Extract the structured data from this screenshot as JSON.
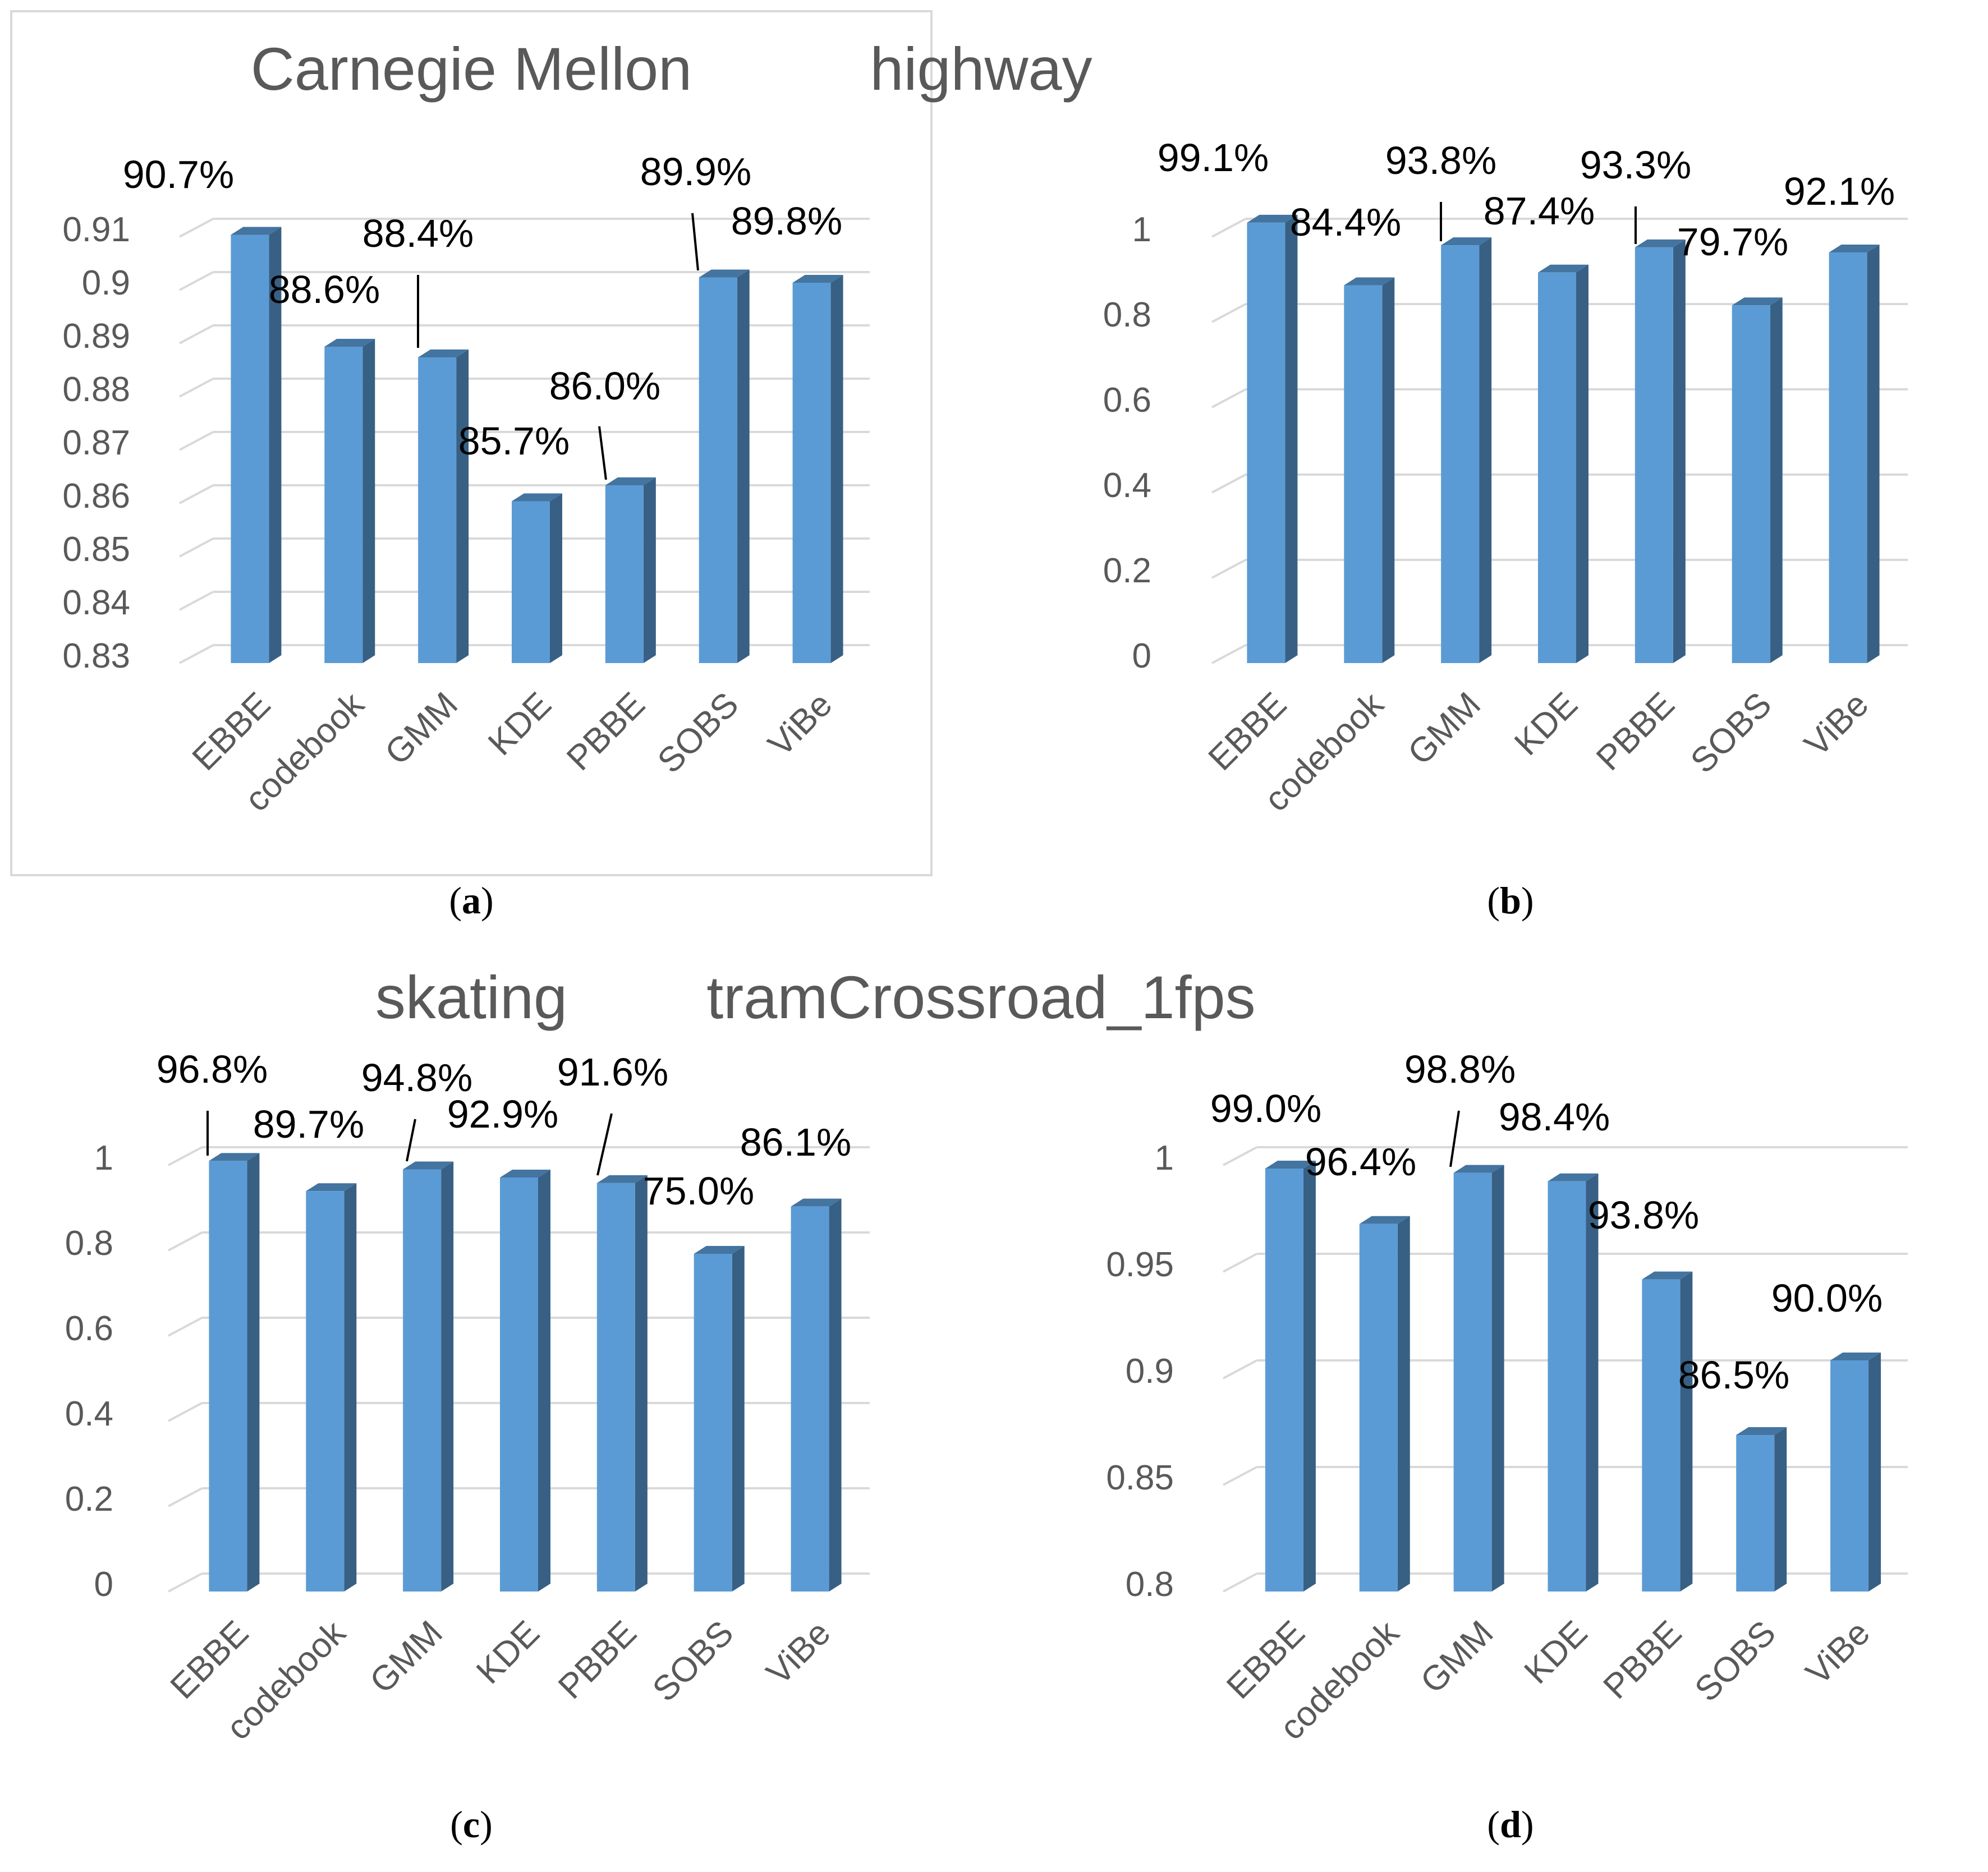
{
  "chart_data": [
    {
      "type": "bar",
      "title": "Carnegie Mellon",
      "caption_letter": "a",
      "categories": [
        "EBBE",
        "codebook",
        "GMM",
        "KDE",
        "PBBE",
        "SOBS",
        "ViBe"
      ],
      "values": [
        0.907,
        0.886,
        0.884,
        0.857,
        0.86,
        0.899,
        0.898
      ],
      "data_labels": [
        "90.7%",
        "88.6%",
        "88.4%",
        "85.7%",
        "86.0%",
        "89.9%",
        "89.8%"
      ],
      "ylim": [
        0.83,
        0.91
      ],
      "yticks": [
        "0.83",
        "0.84",
        "0.85",
        "0.86",
        "0.87",
        "0.88",
        "0.89",
        "0.9",
        "0.91"
      ],
      "grid": true,
      "bar_color": "#5B9BD5"
    },
    {
      "type": "bar",
      "title": "highway",
      "caption_letter": "b",
      "categories": [
        "EBBE",
        "codebook",
        "GMM",
        "KDE",
        "PBBE",
        "SOBS",
        "ViBe"
      ],
      "values": [
        0.991,
        0.844,
        0.938,
        0.874,
        0.933,
        0.797,
        0.921
      ],
      "data_labels": [
        "99.1%",
        "84.4%",
        "93.8%",
        "87.4%",
        "93.3%",
        "79.7%",
        "92.1%"
      ],
      "ylim": [
        0,
        1
      ],
      "yticks": [
        "0",
        "0.2",
        "0.4",
        "0.6",
        "0.8",
        "1"
      ],
      "grid": true,
      "bar_color": "#5B9BD5"
    },
    {
      "type": "bar",
      "title": "skating",
      "caption_letter": "c",
      "categories": [
        "EBBE",
        "codebook",
        "GMM",
        "KDE",
        "PBBE",
        "SOBS",
        "ViBe"
      ],
      "values": [
        0.968,
        0.897,
        0.948,
        0.929,
        0.916,
        0.75,
        0.861
      ],
      "data_labels": [
        "96.8%",
        "89.7%",
        "94.8%",
        "92.9%",
        "91.6%",
        "75.0%",
        "86.1%"
      ],
      "ylim": [
        0,
        1
      ],
      "yticks": [
        "0",
        "0.2",
        "0.4",
        "0.6",
        "0.8",
        "1"
      ],
      "grid": true,
      "bar_color": "#5B9BD5"
    },
    {
      "type": "bar",
      "title": "tramCrossroad_1fps",
      "caption_letter": "d",
      "categories": [
        "EBBE",
        "codebook",
        "GMM",
        "KDE",
        "PBBE",
        "SOBS",
        "ViBe"
      ],
      "values": [
        0.99,
        0.964,
        0.988,
        0.984,
        0.938,
        0.865,
        0.9
      ],
      "data_labels": [
        "99.0%",
        "96.4%",
        "98.8%",
        "98.4%",
        "93.8%",
        "86.5%",
        "90.0%"
      ],
      "ylim": [
        0.8,
        1
      ],
      "yticks": [
        "0.8",
        "0.85",
        "0.9",
        "0.95",
        "1"
      ],
      "grid": true,
      "bar_color": "#5B9BD5"
    }
  ]
}
